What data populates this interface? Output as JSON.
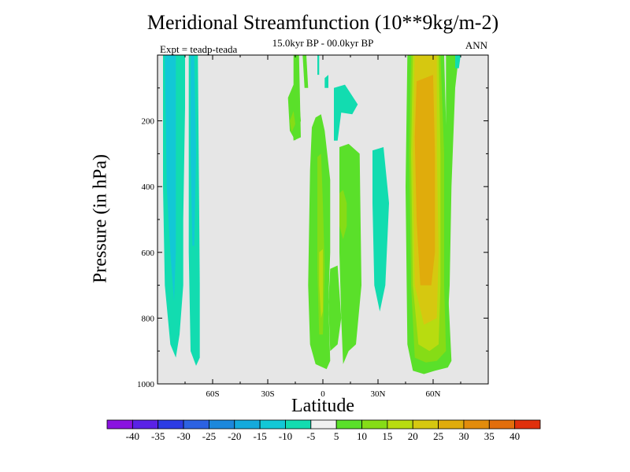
{
  "chart_data": {
    "type": "heatmap",
    "title": "Meridional Streamfunction (10**9kg/m-2)",
    "subtitle": "15.0kyr BP - 00.0kyr BP",
    "left_label": "Expt = teadp-teada",
    "right_label": "ANN",
    "xlabel": "Latitude",
    "ylabel": "Pressure (in hPa)",
    "xlim": [
      -90,
      90
    ],
    "ylim": [
      0,
      1000
    ],
    "x_ticks": [
      {
        "value": -60,
        "label": "60S"
      },
      {
        "value": -30,
        "label": "30S"
      },
      {
        "value": 0,
        "label": "0"
      },
      {
        "value": 30,
        "label": "30N"
      },
      {
        "value": 60,
        "label": "60N"
      }
    ],
    "y_ticks": [
      {
        "value": 200,
        "label": "200"
      },
      {
        "value": 400,
        "label": "400"
      },
      {
        "value": 600,
        "label": "600"
      },
      {
        "value": 800,
        "label": "800"
      },
      {
        "value": 1000,
        "label": "1000"
      }
    ],
    "background_color": "#e6e6e6",
    "colorbar": {
      "labels": [
        "-40",
        "-35",
        "-30",
        "-25",
        "-20",
        "-15",
        "-10",
        "-5",
        "5",
        "10",
        "15",
        "20",
        "25",
        "30",
        "35",
        "40"
      ],
      "colors": [
        "#8a12e0",
        "#5a22e6",
        "#2c3be4",
        "#2c62e2",
        "#1c88dc",
        "#14aadc",
        "#12c8d6",
        "#12dcb0",
        "#f0f0f0",
        "#5ae02a",
        "#86dc16",
        "#b8dc10",
        "#d6c810",
        "#e0ac0c",
        "#e28c0c",
        "#e26e0c",
        "#e0300c"
      ]
    },
    "regions": [
      {
        "level": -10,
        "color": "#12dcb0",
        "points": [
          [
            -87,
            0
          ],
          [
            -75,
            0
          ],
          [
            -75,
            160
          ],
          [
            -76,
            500
          ],
          [
            -76,
            700
          ],
          [
            -78,
            850
          ],
          [
            -80,
            920
          ],
          [
            -83,
            880
          ],
          [
            -86,
            700
          ],
          [
            -87,
            400
          ]
        ]
      },
      {
        "level": -15,
        "color": "#12c8d6",
        "points": [
          [
            -86,
            0
          ],
          [
            -80,
            0
          ],
          [
            -80,
            300
          ],
          [
            -80,
            600
          ],
          [
            -81,
            750
          ],
          [
            -83,
            600
          ],
          [
            -85,
            400
          ]
        ]
      },
      {
        "level": -10,
        "color": "#12dcb0",
        "points": [
          [
            -73,
            0
          ],
          [
            -68,
            0
          ],
          [
            -67,
            700
          ],
          [
            -67,
            920
          ],
          [
            -69,
            945
          ],
          [
            -72,
            900
          ],
          [
            -73,
            600
          ]
        ]
      },
      {
        "level": -15,
        "color": "#12c8d6",
        "points": [
          [
            -72,
            0
          ],
          [
            -70,
            0
          ],
          [
            -69,
            300
          ],
          [
            -70,
            580
          ],
          [
            -71,
            580
          ],
          [
            -72,
            300
          ]
        ]
      },
      {
        "level": 5,
        "color": "#5ae02a",
        "points": [
          [
            -16,
            0
          ],
          [
            -13,
            0
          ],
          [
            -12,
            250
          ],
          [
            -16,
            260
          ],
          [
            -17,
            150
          ],
          [
            -16,
            100
          ]
        ]
      },
      {
        "level": 5,
        "color": "#5ae02a",
        "points": [
          [
            -19,
            130
          ],
          [
            -16,
            90
          ],
          [
            -13,
            130
          ],
          [
            -12,
            200
          ],
          [
            -15,
            260
          ],
          [
            -18,
            230
          ]
        ]
      },
      {
        "level": 10,
        "color": "#86dc16",
        "points": [
          [
            -18,
            200
          ],
          [
            -16,
            170
          ],
          [
            -15,
            210
          ],
          [
            -17,
            235
          ]
        ]
      },
      {
        "level": 5,
        "color": "#5ae02a",
        "points": [
          [
            -11,
            0
          ],
          [
            -9,
            0
          ],
          [
            -8,
            100
          ],
          [
            -10,
            100
          ]
        ]
      },
      {
        "level": -10,
        "color": "#12dcb0",
        "points": [
          [
            -3,
            0
          ],
          [
            -2,
            0
          ],
          [
            -2,
            60
          ],
          [
            -3,
            60
          ]
        ]
      },
      {
        "level": 5,
        "color": "#5ae02a",
        "points": [
          [
            -4,
            190
          ],
          [
            -1,
            180
          ],
          [
            1,
            230
          ],
          [
            4,
            380
          ],
          [
            4,
            600
          ],
          [
            3,
            750
          ],
          [
            4,
            930
          ],
          [
            2,
            955
          ],
          [
            -4,
            940
          ],
          [
            -7,
            880
          ],
          [
            -8,
            700
          ],
          [
            -7,
            350
          ],
          [
            -6,
            220
          ]
        ]
      },
      {
        "level": 10,
        "color": "#86dc16",
        "points": [
          [
            -3,
            310
          ],
          [
            -1,
            300
          ],
          [
            0,
            450
          ],
          [
            1,
            650
          ],
          [
            0,
            850
          ],
          [
            -2,
            850
          ],
          [
            -3,
            650
          ],
          [
            -3,
            400
          ]
        ]
      },
      {
        "level": 15,
        "color": "#b8dc10",
        "points": [
          [
            -2,
            600
          ],
          [
            0,
            590
          ],
          [
            0,
            780
          ],
          [
            -1,
            800
          ],
          [
            -2,
            700
          ]
        ]
      },
      {
        "level": -10,
        "color": "#12dcb0",
        "points": [
          [
            6,
            100
          ],
          [
            12,
            90
          ],
          [
            19,
            150
          ],
          [
            16,
            180
          ],
          [
            10,
            175
          ],
          [
            8,
            260
          ],
          [
            6,
            260
          ],
          [
            6,
            160
          ]
        ]
      },
      {
        "level": -10,
        "color": "#12dcb0",
        "points": [
          [
            1,
            70
          ],
          [
            3,
            60
          ],
          [
            3,
            100
          ],
          [
            1,
            100
          ]
        ]
      },
      {
        "level": 5,
        "color": "#5ae02a",
        "points": [
          [
            9,
            280
          ],
          [
            14,
            270
          ],
          [
            20,
            300
          ],
          [
            21,
            700
          ],
          [
            18,
            880
          ],
          [
            14,
            900
          ],
          [
            11,
            940
          ],
          [
            10,
            800
          ],
          [
            9,
            600
          ]
        ]
      },
      {
        "level": 10,
        "color": "#86dc16",
        "points": [
          [
            9,
            420
          ],
          [
            11,
            410
          ],
          [
            13,
            450
          ],
          [
            13,
            520
          ],
          [
            11,
            560
          ],
          [
            9,
            520
          ]
        ]
      },
      {
        "level": 5,
        "color": "#5ae02a",
        "points": [
          [
            4,
            650
          ],
          [
            8,
            640
          ],
          [
            10,
            800
          ],
          [
            8,
            880
          ],
          [
            4,
            900
          ],
          [
            3,
            750
          ]
        ]
      },
      {
        "level": -10,
        "color": "#12dcb0",
        "points": [
          [
            27,
            290
          ],
          [
            33,
            280
          ],
          [
            36,
            450
          ],
          [
            34,
            700
          ],
          [
            31,
            780
          ],
          [
            28,
            700
          ],
          [
            27,
            450
          ]
        ]
      },
      {
        "level": 5,
        "color": "#5ae02a",
        "points": [
          [
            46,
            0
          ],
          [
            66,
            0
          ],
          [
            67,
            200
          ],
          [
            69,
            500
          ],
          [
            68,
            700
          ],
          [
            70,
            930
          ],
          [
            68,
            950
          ],
          [
            61,
            960
          ],
          [
            55,
            970
          ],
          [
            49,
            960
          ],
          [
            46,
            880
          ],
          [
            45,
            400
          ]
        ]
      },
      {
        "level": 10,
        "color": "#86dc16",
        "points": [
          [
            48,
            0
          ],
          [
            64,
            0
          ],
          [
            66,
            300
          ],
          [
            66,
            700
          ],
          [
            67,
            900
          ],
          [
            62,
            930
          ],
          [
            56,
            935
          ],
          [
            50,
            920
          ],
          [
            48,
            700
          ],
          [
            47,
            300
          ]
        ]
      },
      {
        "level": 15,
        "color": "#b8dc10",
        "points": [
          [
            49,
            0
          ],
          [
            63,
            0
          ],
          [
            64,
            300
          ],
          [
            64,
            700
          ],
          [
            63,
            880
          ],
          [
            58,
            900
          ],
          [
            52,
            880
          ],
          [
            49,
            700
          ],
          [
            48,
            300
          ]
        ]
      },
      {
        "level": 20,
        "color": "#d6c810",
        "points": [
          [
            50,
            0
          ],
          [
            62,
            0
          ],
          [
            62,
            300
          ],
          [
            63,
            600
          ],
          [
            62,
            800
          ],
          [
            55,
            820
          ],
          [
            50,
            700
          ],
          [
            49,
            300
          ]
        ]
      },
      {
        "level": 25,
        "color": "#e0ac0c",
        "points": [
          [
            51,
            80
          ],
          [
            60,
            60
          ],
          [
            61,
            300
          ],
          [
            61,
            600
          ],
          [
            59,
            700
          ],
          [
            53,
            700
          ],
          [
            51,
            500
          ],
          [
            50,
            250
          ]
        ]
      },
      {
        "level": 5,
        "color": "#5ae02a",
        "points": [
          [
            67,
            0
          ],
          [
            74,
            0
          ],
          [
            72,
            100
          ],
          [
            70,
            400
          ],
          [
            69,
            700
          ],
          [
            68,
            800
          ],
          [
            67,
            600
          ]
        ]
      },
      {
        "level": -10,
        "color": "#12dcb0",
        "points": [
          [
            72,
            0
          ],
          [
            75,
            0
          ],
          [
            74,
            40
          ],
          [
            72,
            40
          ]
        ]
      }
    ]
  }
}
